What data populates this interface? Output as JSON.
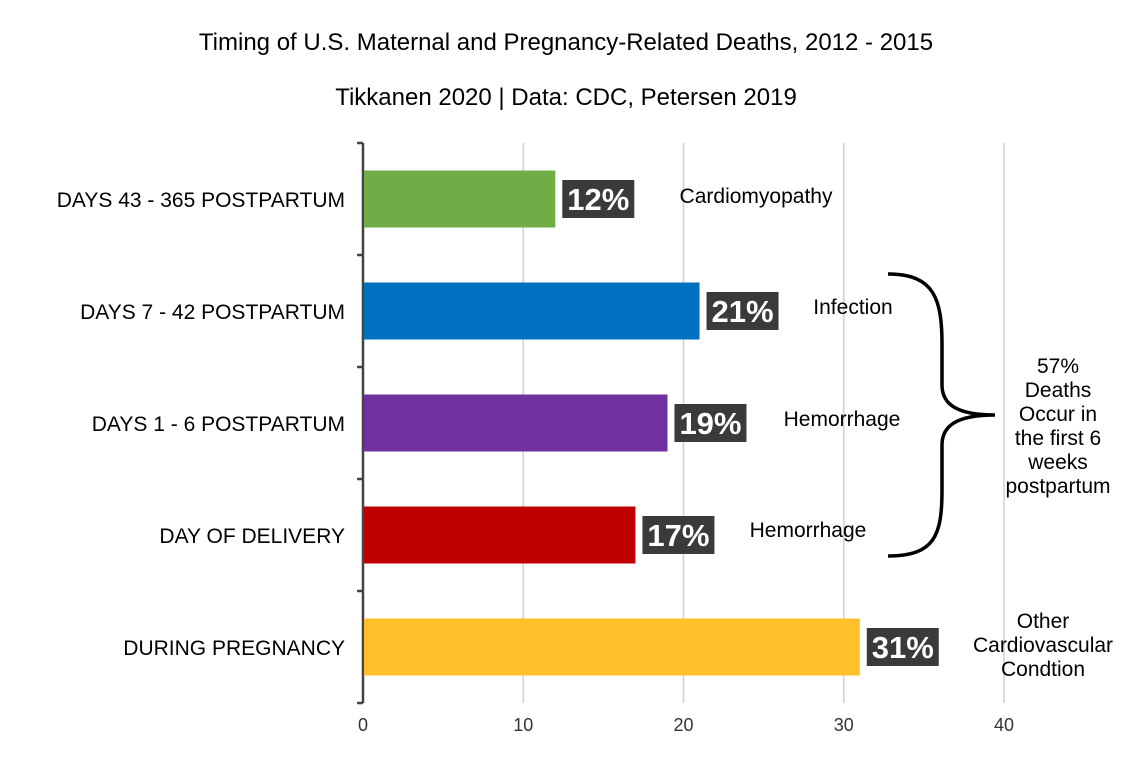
{
  "chart_data": {
    "type": "bar",
    "orientation": "horizontal",
    "title": "Timing of U.S. Maternal and Pregnancy-Related Deaths, 2012 - 2015",
    "subtitle": "Tikkanen 2020 | Data: CDC, Petersen 2019",
    "categories": [
      "DAYS 43 - 365 POSTPARTUM",
      "DAYS 7 - 42 POSTPARTUM",
      "DAYS 1 - 6 POSTPARTUM",
      "DAY OF DELIVERY",
      "DURING PREGNANCY"
    ],
    "values": [
      12,
      21,
      19,
      17,
      31
    ],
    "value_labels": [
      "12%",
      "21%",
      "19%",
      "17%",
      "31%"
    ],
    "colors": [
      "#70ad47",
      "#0070c0",
      "#7030a0",
      "#c00000",
      "#ffc02a"
    ],
    "annotations": [
      "Cardiomyopathy",
      "Infection",
      "Hemorrhage",
      "Hemorrhage",
      "Other Cardiovascular Condtion"
    ],
    "xlim": [
      0,
      40
    ],
    "xticks": [
      0,
      10,
      20,
      30,
      40
    ],
    "grid": true,
    "brace_annotation": "57% Deaths Occur in the first 6 weeks postpartum"
  }
}
